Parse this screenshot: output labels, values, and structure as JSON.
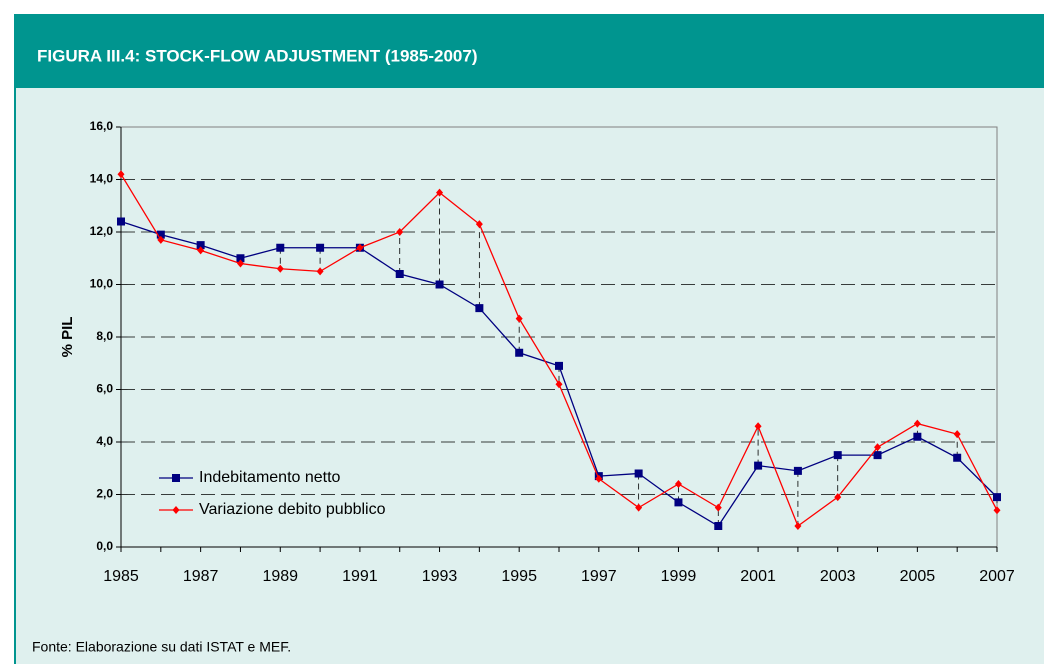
{
  "header": {
    "title": "FIGURA III.4: STOCK-FLOW ADJUSTMENT (1985-2007)"
  },
  "chart_data": {
    "type": "line",
    "y_label": "% PIL",
    "x": [
      1985,
      1986,
      1987,
      1988,
      1989,
      1990,
      1991,
      1992,
      1993,
      1994,
      1995,
      1996,
      1997,
      1998,
      1999,
      2000,
      2001,
      2002,
      2003,
      2004,
      2005,
      2006,
      2007
    ],
    "xlim": [
      1985,
      2007
    ],
    "xticks": [
      1985,
      1987,
      1989,
      1991,
      1993,
      1995,
      1997,
      1999,
      2001,
      2003,
      2005,
      2007
    ],
    "ylim": [
      0,
      16
    ],
    "yticks": [
      {
        "value": 0,
        "label": "0,0"
      },
      {
        "value": 2,
        "label": "2,0"
      },
      {
        "value": 4,
        "label": "4,0"
      },
      {
        "value": 6,
        "label": "6,0"
      },
      {
        "value": 8,
        "label": "8,0"
      },
      {
        "value": 10,
        "label": "10,0"
      },
      {
        "value": 12,
        "label": "12,0"
      },
      {
        "value": 14,
        "label": "14,0"
      },
      {
        "value": 16,
        "label": "16,0"
      }
    ],
    "grid": true,
    "legend": "lower left",
    "series": [
      {
        "name": "Indebitamento netto",
        "color": "#000080",
        "marker": "square",
        "values": [
          12.4,
          11.9,
          11.5,
          11.0,
          11.4,
          11.4,
          11.4,
          10.4,
          10.0,
          9.1,
          7.4,
          6.9,
          2.7,
          2.8,
          1.7,
          0.8,
          3.1,
          2.9,
          3.5,
          3.5,
          4.2,
          3.4,
          1.9
        ]
      },
      {
        "name": "Variazione debito pubblico",
        "color": "#ff0000",
        "marker": "diamond",
        "values": [
          14.2,
          11.7,
          11.3,
          10.8,
          10.6,
          10.5,
          11.4,
          12.0,
          13.5,
          12.3,
          8.7,
          6.2,
          2.6,
          1.5,
          2.4,
          1.5,
          4.6,
          0.8,
          1.9,
          3.8,
          4.7,
          4.3,
          1.4
        ]
      }
    ]
  },
  "footer": {
    "source": "Fonte: Elaborazione su dati ISTAT e MEF."
  }
}
